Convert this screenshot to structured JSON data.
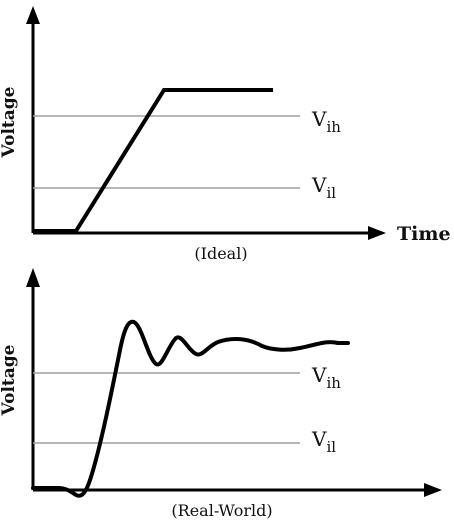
{
  "top_panel": {
    "y_axis_label": "Voltage",
    "x_axis_label": "Time",
    "caption": "(Ideal)",
    "vih": {
      "main": "V",
      "sub": "ih"
    },
    "vil": {
      "main": "V",
      "sub": "il"
    }
  },
  "bottom_panel": {
    "y_axis_label": "Voltage",
    "caption": "(Real-World)",
    "vih": {
      "main": "V",
      "sub": "ih"
    },
    "vil": {
      "main": "V",
      "sub": "il"
    }
  },
  "colors": {
    "signal": "#000000",
    "threshold": "#a0a0a0",
    "axis": "#000000"
  }
}
